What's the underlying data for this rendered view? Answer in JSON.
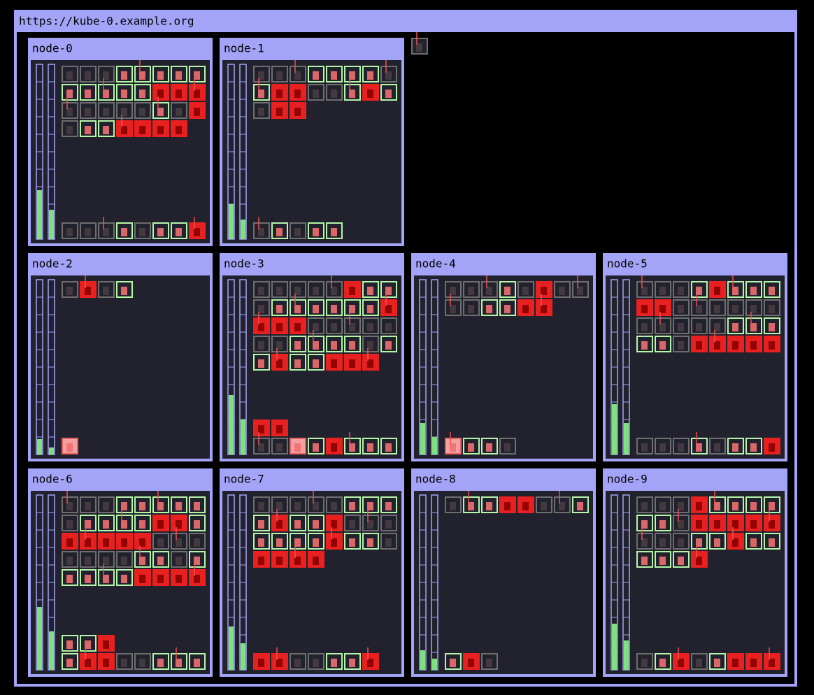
{
  "url": "https://kube-0.example.org",
  "nodes": [
    {
      "name": "node-0"
    },
    {
      "name": "node-1"
    },
    {
      "name": "node-2"
    },
    {
      "name": "node-3"
    },
    {
      "name": "node-4"
    },
    {
      "name": "node-5"
    },
    {
      "name": "node-6"
    },
    {
      "name": "node-7"
    },
    {
      "name": "node-8"
    },
    {
      "name": "node-9"
    }
  ]
}
